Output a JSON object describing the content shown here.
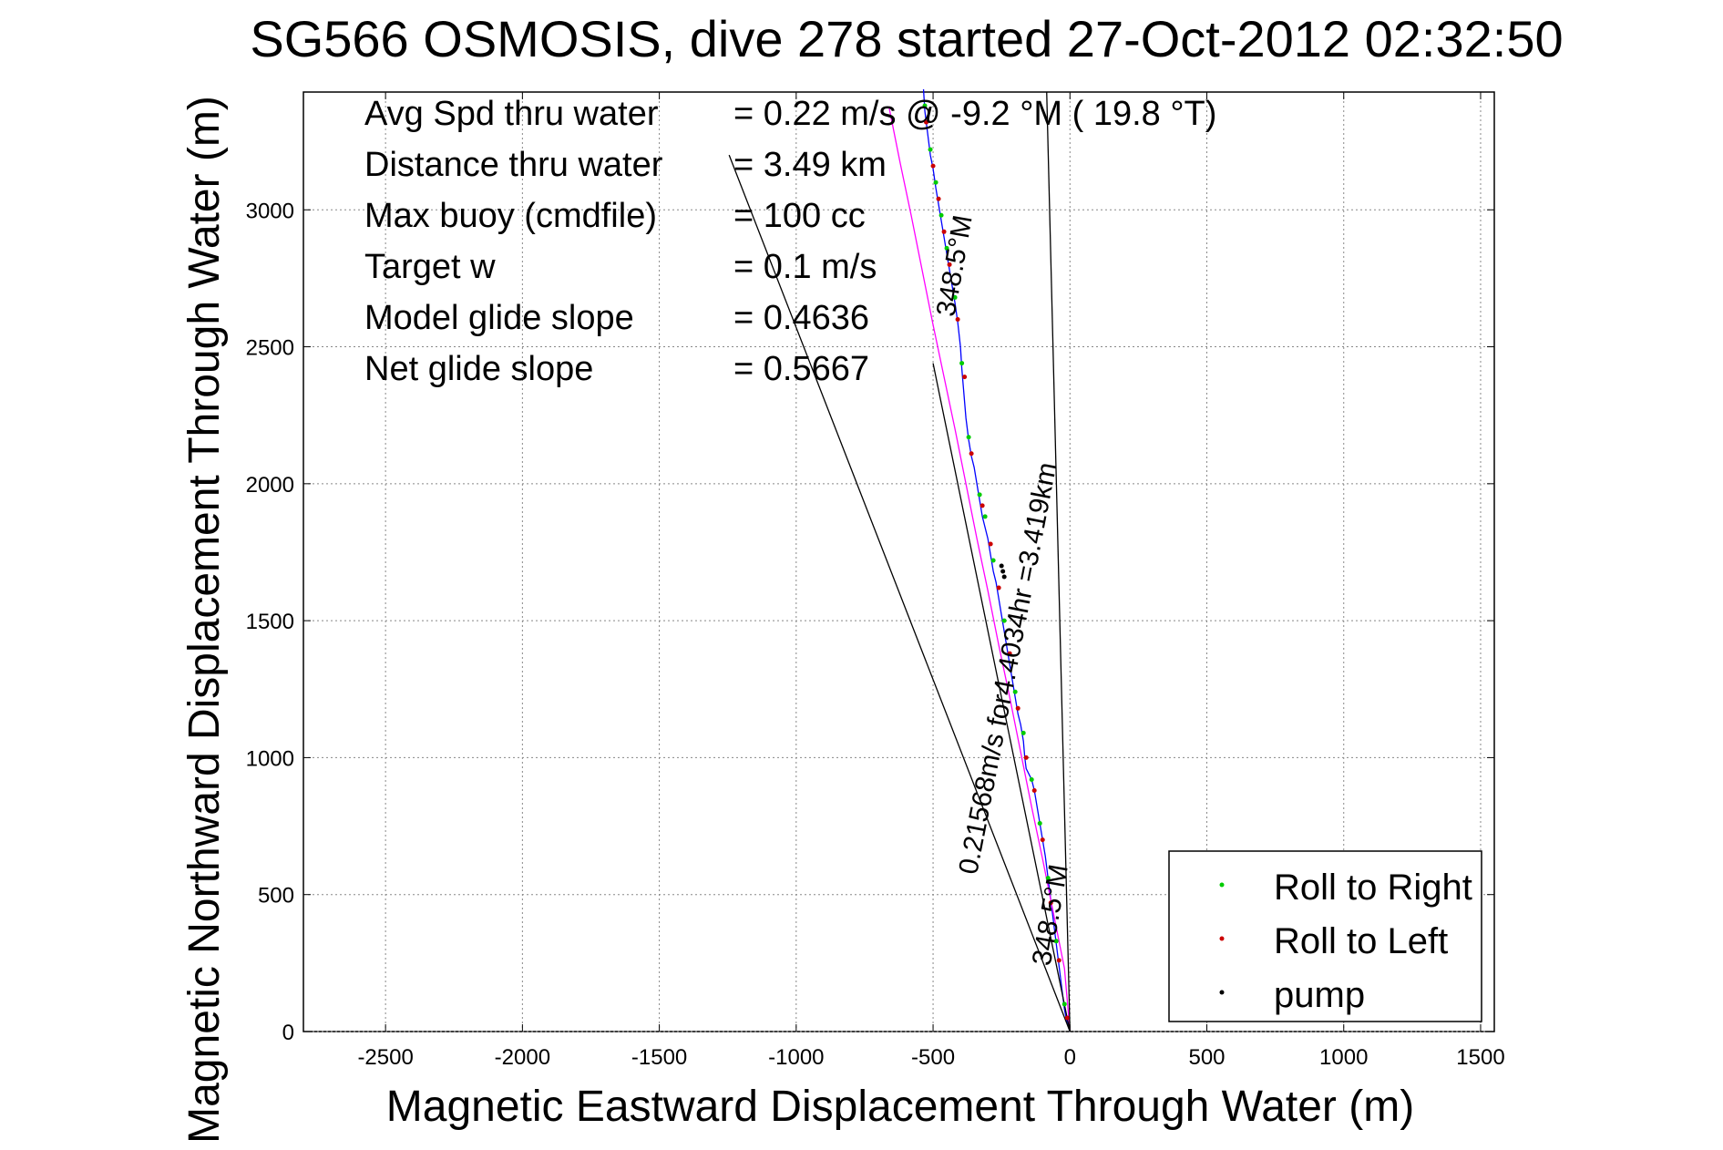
{
  "chart_data": {
    "type": "line",
    "title": "SG566 OSMOSIS, dive 278 started 27-Oct-2012 02:32:50",
    "xlabel": "Magnetic Eastward Displacement Through Water (m)",
    "ylabel": "Magnetic Northward Displacement Through Water (m)",
    "xlim": [
      -2800,
      1550
    ],
    "ylim": [
      0,
      3430
    ],
    "xticks": [
      "-2500",
      "-2000",
      "-1500",
      "-1000",
      "-500",
      "0",
      "500",
      "1000",
      "1500"
    ],
    "yticks": [
      "0",
      "500",
      "1000",
      "1500",
      "2000",
      "2500",
      "3000"
    ],
    "grid": true,
    "info_rows": [
      {
        "label": "Avg Spd thru water",
        "value": "=  0.22 m/s @  -9.2 °M ( 19.8 °T)"
      },
      {
        "label": "Distance thru water",
        "value": "=  3.49 km"
      },
      {
        "label": "Max buoy (cmdfile)",
        "value": "= 100 cc"
      },
      {
        "label": "Target w",
        "value": "= 0.1 m/s"
      },
      {
        "label": "Model glide slope",
        "value": "= 0.4636"
      },
      {
        "label": "Net glide slope",
        "value": "= 0.5667"
      }
    ],
    "annotations": [
      {
        "text": "348.5°M",
        "x": -390,
        "y": 2790,
        "angle": -80
      },
      {
        "text": "0.21568m/s for4.4034hr =3.419km",
        "x": -195,
        "y": 1320,
        "angle": -79
      },
      {
        "text": "348.5°M",
        "x": -40,
        "y": 420,
        "angle": -80
      }
    ],
    "legend": {
      "placement": "bottom-right",
      "entries": [
        {
          "name": "Roll to Right",
          "color": "#00cc00"
        },
        {
          "name": "Roll to Left",
          "color": "#cc0000"
        },
        {
          "name": "pump",
          "color": "#000000"
        }
      ]
    },
    "series": [
      {
        "name": "track",
        "color": "#0000ff",
        "x": [
          -535,
          -530,
          -520,
          -510,
          -500,
          -490,
          -480,
          -470,
          -460,
          -450,
          -440,
          -430,
          -420,
          -410,
          -400,
          -395,
          -390,
          -385,
          -380,
          -370,
          -360,
          -350,
          -340,
          -330,
          -320,
          -300,
          -290,
          -280,
          -270,
          -260,
          -250,
          -240,
          -230,
          -220,
          -210,
          -200,
          -190,
          -180,
          -170,
          -165,
          -160,
          -150,
          -140,
          -130,
          -120,
          -110,
          -100,
          -90,
          -80,
          -70,
          -60,
          -50,
          -40,
          -30,
          -20,
          -10,
          0
        ],
        "y": [
          3440,
          3360,
          3280,
          3200,
          3150,
          3080,
          3020,
          2960,
          2900,
          2840,
          2780,
          2720,
          2660,
          2590,
          2500,
          2420,
          2360,
          2300,
          2240,
          2160,
          2100,
          2060,
          2000,
          1940,
          1880,
          1800,
          1740,
          1680,
          1640,
          1580,
          1520,
          1460,
          1400,
          1340,
          1280,
          1220,
          1160,
          1120,
          1060,
          1000,
          960,
          940,
          920,
          880,
          820,
          760,
          700,
          640,
          560,
          480,
          400,
          320,
          240,
          160,
          80,
          30,
          0
        ]
      },
      {
        "name": "path",
        "color": "#ff00ff",
        "x": [
          -660,
          -620,
          -580,
          -540,
          -500,
          -460,
          -420,
          -380,
          -340,
          -300,
          -260,
          -220,
          -180,
          -140,
          -100,
          -60,
          -20,
          0
        ],
        "y": [
          3370,
          3170,
          2980,
          2780,
          2580,
          2390,
          2200,
          2000,
          1800,
          1610,
          1410,
          1220,
          1020,
          820,
          630,
          430,
          230,
          0
        ]
      },
      {
        "name": "line-north",
        "color": "#000000",
        "x": [
          0,
          -85
        ],
        "y": [
          0,
          3430
        ]
      },
      {
        "name": "line-west",
        "color": "#000000",
        "x": [
          0,
          -1245
        ],
        "y": [
          0,
          3200
        ]
      },
      {
        "name": "line-mid",
        "color": "#000000",
        "x": [
          0,
          -500
        ],
        "y": [
          0,
          2440
        ]
      },
      {
        "name": "roll-right-markers",
        "color": "#00cc00",
        "markers": true,
        "x": [
          -530,
          -510,
          -490,
          -470,
          -450,
          -420,
          -395,
          -370,
          -330,
          -310,
          -280,
          -240,
          -200,
          -170,
          -140,
          -110,
          -80,
          -50,
          -20
        ],
        "y": [
          3380,
          3220,
          3100,
          2980,
          2860,
          2680,
          2440,
          2170,
          1960,
          1880,
          1720,
          1500,
          1240,
          1090,
          920,
          760,
          560,
          330,
          100
        ]
      },
      {
        "name": "roll-left-markers",
        "color": "#cc0000",
        "markers": true,
        "x": [
          -525,
          -500,
          -480,
          -460,
          -440,
          -410,
          -385,
          -360,
          -320,
          -290,
          -260,
          -220,
          -190,
          -160,
          -130,
          -100,
          -70,
          -40,
          -10
        ],
        "y": [
          3320,
          3160,
          3040,
          2920,
          2800,
          2600,
          2390,
          2110,
          1920,
          1780,
          1620,
          1380,
          1180,
          1000,
          880,
          700,
          470,
          260,
          50
        ]
      },
      {
        "name": "pump-markers",
        "color": "#000000",
        "markers": true,
        "x": [
          -250,
          -245,
          -240
        ],
        "y": [
          1700,
          1680,
          1660
        ]
      }
    ]
  }
}
